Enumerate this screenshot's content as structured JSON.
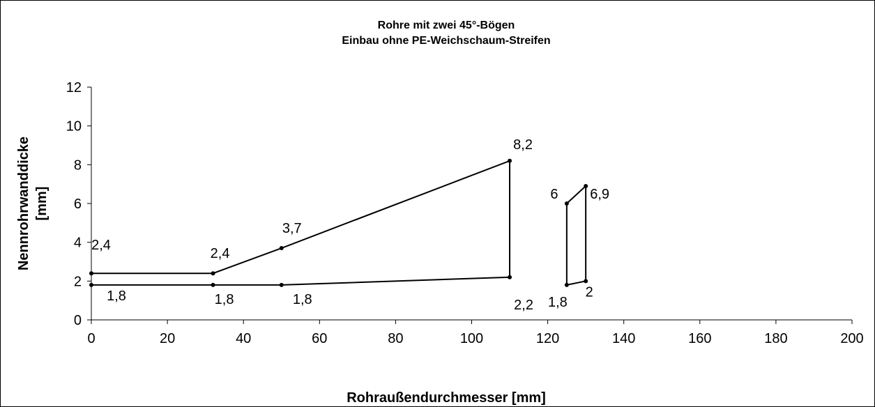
{
  "chart_data": {
    "type": "line",
    "title": [
      "Rohre mit zwei 45°-Bögen",
      "Einbau ohne PE-Weichschaum-Streifen"
    ],
    "x_label": "Rohraußendurchmesser [mm]",
    "y_label": [
      "Nennrohrwanddicke",
      "[mm]"
    ],
    "series": [
      {
        "color": "#000000",
        "x": [
          0,
          32,
          50,
          110,
          110,
          50,
          32,
          0
        ],
        "values": [
          2.4,
          2.4,
          3.7,
          8.2,
          2.2,
          1.8,
          1.8,
          1.8
        ],
        "value_labels": [
          "2,4",
          "2,4",
          "3,7",
          "8,2",
          "2,2",
          "1,8",
          "1,8",
          "1,8"
        ],
        "closed": false
      },
      {
        "color": "#000000",
        "x": [
          125,
          130,
          130,
          125
        ],
        "values": [
          6,
          6.9,
          2,
          1.8
        ],
        "value_labels": [
          "6",
          "6,9",
          "2",
          "1,8"
        ],
        "closed": true
      }
    ],
    "xlim": [
      0,
      200
    ],
    "xticks": [
      0,
      20,
      40,
      60,
      80,
      100,
      120,
      140,
      160,
      180,
      200
    ],
    "ylim": [
      0,
      12
    ],
    "yticks": [
      0,
      2,
      4,
      6,
      8,
      10,
      12
    ],
    "grid": false
  }
}
